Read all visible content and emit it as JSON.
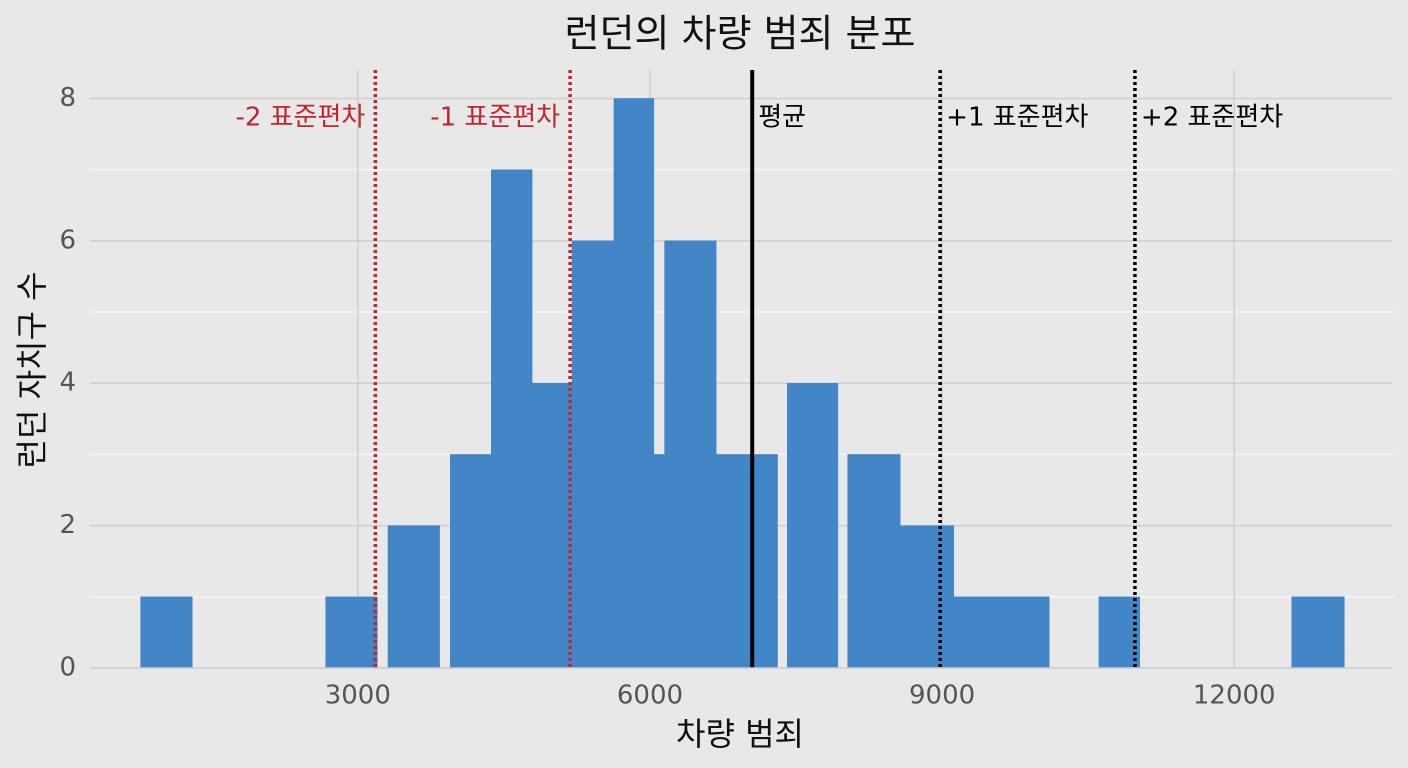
{
  "chart_data": {
    "type": "histogram",
    "title": "런던의 차량 범죄 분포",
    "x_label": "차량 범죄",
    "y_label": "런던 자치구 수",
    "bins": [
      770,
      1300,
      2670,
      3200,
      3310,
      3840,
      3950,
      4370,
      4790,
      5200,
      5630,
      6040,
      6150,
      6680,
      7030,
      7310,
      7410,
      7930,
      8030,
      8570,
      9120,
      9540,
      10100,
      10610,
      11030,
      12590,
      13130
    ],
    "counts": [
      1,
      0,
      1,
      0,
      2,
      0,
      3,
      7,
      4,
      6,
      8,
      3,
      6,
      3,
      3,
      0,
      4,
      0,
      3,
      2,
      1,
      1,
      0,
      1,
      0,
      1
    ],
    "color": "#4286c8",
    "xlim": [
      250,
      13630
    ],
    "ylim": [
      0,
      8.4
    ],
    "xticks": [
      3000,
      6000,
      9000,
      12000
    ],
    "yticks": [
      0,
      2,
      4,
      6,
      8
    ],
    "minor_yticks": [
      1,
      3,
      5,
      7
    ],
    "grid": true,
    "reference_lines": [
      {
        "value": 3180,
        "label": "-2 표준편차",
        "color": "#c0262d",
        "style": "dotted",
        "label_side": "left"
      },
      {
        "value": 5180,
        "label": "-1 표준편차",
        "color": "#c0262d",
        "style": "dotted",
        "label_side": "left"
      },
      {
        "value": 7050,
        "label": "평균",
        "color": "#000000",
        "style": "solid",
        "label_side": "right"
      },
      {
        "value": 8980,
        "label": "+1 표준편차",
        "color": "#000000",
        "style": "dotted",
        "label_side": "right"
      },
      {
        "value": 10980,
        "label": "+2 표준편차",
        "color": "#000000",
        "style": "dotted",
        "label_side": "right"
      }
    ]
  }
}
